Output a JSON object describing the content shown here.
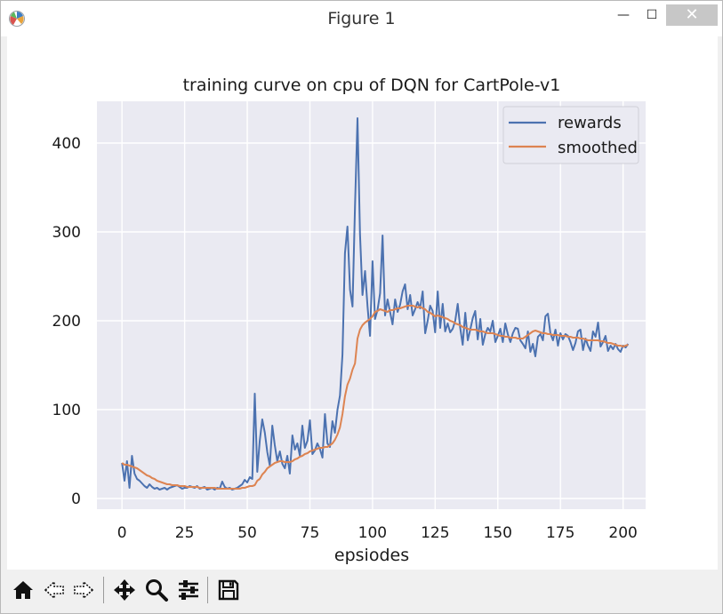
{
  "window": {
    "title": "Figure 1",
    "minimize_label": "—",
    "maximize_label": "☐",
    "close_label": "✕"
  },
  "toolbar": {
    "items": [
      "home-icon",
      "back-icon",
      "forward-icon",
      "pan-icon",
      "zoom-icon",
      "configure-subplots-icon",
      "save-icon"
    ]
  },
  "colors": {
    "plot_bg": "#eaeaf2",
    "rewards": "#4c72b0",
    "smoothed": "#dd8452",
    "grid": "#ffffff"
  },
  "chart_data": {
    "type": "line",
    "title": "training curve on cpu of DQN for CartPole-v1",
    "xlabel": "epsiodes",
    "ylabel": "",
    "xlim": [
      -10,
      209
    ],
    "ylim": [
      -12,
      447
    ],
    "xticks": [
      0,
      25,
      50,
      75,
      100,
      125,
      150,
      175,
      200
    ],
    "yticks": [
      0,
      100,
      200,
      300,
      400
    ],
    "grid": true,
    "legend": "top-right",
    "series": [
      {
        "name": "rewards",
        "values": [
          40,
          20,
          42,
          12,
          48,
          28,
          22,
          20,
          17,
          14,
          12,
          16,
          13,
          11,
          12,
          10,
          11,
          12,
          10,
          12,
          13,
          14,
          15,
          13,
          11,
          12,
          12,
          14,
          13,
          12,
          14,
          11,
          12,
          13,
          10,
          11,
          12,
          10,
          12,
          11,
          19,
          13,
          11,
          12,
          10,
          11,
          12,
          14,
          16,
          21,
          18,
          24,
          22,
          118,
          30,
          65,
          89,
          74,
          52,
          37,
          82,
          60,
          42,
          53,
          39,
          34,
          48,
          28,
          71,
          55,
          62,
          48,
          82,
          57,
          65,
          88,
          50,
          54,
          62,
          56,
          46,
          95,
          62,
          58,
          87,
          74,
          100,
          116,
          162,
          276,
          306,
          235,
          216,
          329,
          428,
          298,
          229,
          256,
          216,
          183,
          267,
          202,
          212,
          231,
          296,
          206,
          224,
          210,
          196,
          224,
          210,
          218,
          233,
          241,
          213,
          229,
          206,
          213,
          221,
          214,
          233,
          186,
          200,
          217,
          211,
          187,
          233,
          192,
          219,
          188,
          197,
          187,
          191,
          200,
          219,
          192,
          173,
          209,
          178,
          190,
          203,
          211,
          179,
          202,
          173,
          185,
          192,
          188,
          200,
          176,
          183,
          191,
          176,
          197,
          185,
          176,
          186,
          192,
          191,
          178,
          174,
          169,
          188,
          165,
          174,
          160,
          182,
          185,
          178,
          205,
          208,
          186,
          178,
          190,
          172,
          186,
          179,
          185,
          183,
          176,
          167,
          175,
          188,
          190,
          167,
          180,
          172,
          166,
          188,
          182,
          198,
          171,
          176,
          183,
          166,
          172,
          168,
          174,
          168,
          165,
          172,
          170,
          174
        ]
      },
      {
        "name": "smoothed",
        "values": [
          40,
          38,
          38,
          37,
          36,
          35,
          34,
          32,
          30,
          28,
          26,
          25,
          23,
          22,
          20,
          19,
          18,
          17,
          16,
          16,
          15,
          15,
          15,
          14,
          14,
          14,
          13,
          13,
          13,
          13,
          13,
          12,
          12,
          12,
          12,
          12,
          12,
          12,
          11,
          11,
          11,
          11,
          11,
          11,
          11,
          11,
          11,
          11,
          12,
          12,
          13,
          14,
          14,
          15,
          20,
          22,
          27,
          30,
          34,
          36,
          38,
          40,
          41,
          42,
          42,
          41,
          41,
          41,
          42,
          44,
          45,
          47,
          48,
          50,
          51,
          53,
          54,
          55,
          56,
          57,
          57,
          58,
          58,
          60,
          62,
          66,
          72,
          80,
          95,
          115,
          128,
          135,
          145,
          152,
          180,
          190,
          195,
          198,
          200,
          202,
          205,
          210,
          211,
          213,
          212,
          211,
          210,
          212,
          212,
          213,
          214,
          214,
          215,
          216,
          217,
          217,
          217,
          216,
          215,
          216,
          214,
          213,
          210,
          209,
          207,
          205,
          206,
          205,
          204,
          203,
          202,
          200,
          199,
          197,
          196,
          195,
          193,
          192,
          191,
          190,
          190,
          190,
          189,
          188,
          188,
          187,
          186,
          186,
          186,
          185,
          184,
          183,
          183,
          182,
          182,
          181,
          181,
          181,
          180,
          180,
          180,
          182,
          184,
          186,
          188,
          189,
          188,
          187,
          186,
          186,
          185,
          185,
          184,
          184,
          184,
          183,
          183,
          183,
          182,
          182,
          181,
          181,
          181,
          180,
          180,
          179,
          178,
          178,
          178,
          178,
          178,
          177,
          177,
          176,
          175,
          175,
          174,
          173,
          172,
          172,
          171,
          172,
          173
        ]
      }
    ]
  }
}
